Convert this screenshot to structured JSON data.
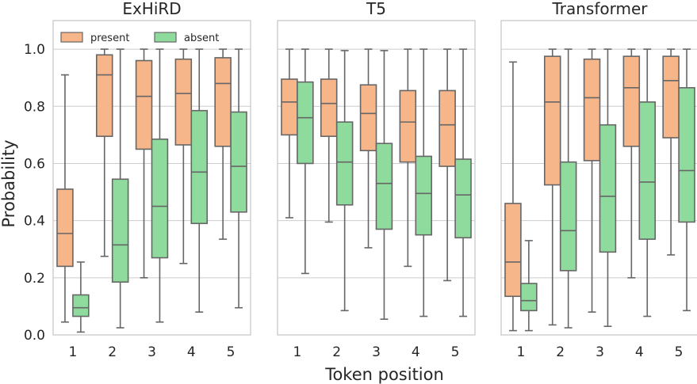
{
  "figure": {
    "xlabel": "Token position",
    "ylabel": "Probability",
    "colors": {
      "present": "#f7b58a",
      "absent": "#8fdb9e",
      "line": "#666666",
      "grid": "#cccccc",
      "frame": "#cccccc"
    }
  },
  "chart_data": [
    {
      "type": "box",
      "title": "ExHiRD",
      "categories": [
        "1",
        "2",
        "3",
        "4",
        "5"
      ],
      "ylim": [
        0,
        1.1
      ],
      "yticks": [
        "0.0",
        "0.2",
        "0.4",
        "0.6",
        "0.8",
        "1.0"
      ],
      "legend": {
        "position": "top-left",
        "entries": [
          "present",
          "absent"
        ]
      },
      "series": [
        {
          "name": "present",
          "boxes": [
            {
              "min": 0.045,
              "q1": 0.24,
              "median": 0.355,
              "q3": 0.51,
              "max": 0.91
            },
            {
              "min": 0.275,
              "q1": 0.695,
              "median": 0.91,
              "q3": 0.98,
              "max": 1.0
            },
            {
              "min": 0.2,
              "q1": 0.65,
              "median": 0.835,
              "q3": 0.96,
              "max": 1.0
            },
            {
              "min": 0.25,
              "q1": 0.665,
              "median": 0.845,
              "q3": 0.965,
              "max": 1.0
            },
            {
              "min": 0.335,
              "q1": 0.66,
              "median": 0.88,
              "q3": 0.97,
              "max": 1.0
            }
          ]
        },
        {
          "name": "absent",
          "boxes": [
            {
              "min": 0.01,
              "q1": 0.065,
              "median": 0.095,
              "q3": 0.14,
              "max": 0.255
            },
            {
              "min": 0.025,
              "q1": 0.185,
              "median": 0.315,
              "q3": 0.545,
              "max": 1.0
            },
            {
              "min": 0.045,
              "q1": 0.27,
              "median": 0.45,
              "q3": 0.685,
              "max": 1.0
            },
            {
              "min": 0.08,
              "q1": 0.39,
              "median": 0.57,
              "q3": 0.785,
              "max": 1.0
            },
            {
              "min": 0.095,
              "q1": 0.43,
              "median": 0.59,
              "q3": 0.78,
              "max": 1.0
            }
          ]
        }
      ]
    },
    {
      "type": "box",
      "title": "T5",
      "categories": [
        "1",
        "2",
        "3",
        "4",
        "5"
      ],
      "ylim": [
        0,
        1.1
      ],
      "series": [
        {
          "name": "present",
          "boxes": [
            {
              "min": 0.41,
              "q1": 0.7,
              "median": 0.815,
              "q3": 0.895,
              "max": 1.0
            },
            {
              "min": 0.395,
              "q1": 0.695,
              "median": 0.81,
              "q3": 0.895,
              "max": 1.0
            },
            {
              "min": 0.305,
              "q1": 0.645,
              "median": 0.775,
              "q3": 0.875,
              "max": 1.0
            },
            {
              "min": 0.24,
              "q1": 0.605,
              "median": 0.745,
              "q3": 0.855,
              "max": 1.0
            },
            {
              "min": 0.19,
              "q1": 0.59,
              "median": 0.735,
              "q3": 0.855,
              "max": 1.0
            }
          ]
        },
        {
          "name": "absent",
          "boxes": [
            {
              "min": 0.215,
              "q1": 0.6,
              "median": 0.76,
              "q3": 0.885,
              "max": 1.0
            },
            {
              "min": 0.085,
              "q1": 0.455,
              "median": 0.605,
              "q3": 0.745,
              "max": 0.995
            },
            {
              "min": 0.055,
              "q1": 0.37,
              "median": 0.53,
              "q3": 0.67,
              "max": 0.995
            },
            {
              "min": 0.065,
              "q1": 0.35,
              "median": 0.495,
              "q3": 0.625,
              "max": 1.0
            },
            {
              "min": 0.065,
              "q1": 0.34,
              "median": 0.49,
              "q3": 0.615,
              "max": 1.0
            }
          ]
        }
      ]
    },
    {
      "type": "box",
      "title": "Transformer",
      "categories": [
        "1",
        "2",
        "3",
        "4",
        "5"
      ],
      "ylim": [
        0,
        1.1
      ],
      "series": [
        {
          "name": "present",
          "boxes": [
            {
              "min": 0.015,
              "q1": 0.135,
              "median": 0.255,
              "q3": 0.46,
              "max": 0.955
            },
            {
              "min": 0.035,
              "q1": 0.525,
              "median": 0.815,
              "q3": 0.975,
              "max": 1.0
            },
            {
              "min": 0.08,
              "q1": 0.61,
              "median": 0.83,
              "q3": 0.965,
              "max": 1.0
            },
            {
              "min": 0.2,
              "q1": 0.66,
              "median": 0.865,
              "q3": 0.975,
              "max": 1.0
            },
            {
              "min": 0.28,
              "q1": 0.69,
              "median": 0.89,
              "q3": 0.975,
              "max": 1.0
            }
          ]
        },
        {
          "name": "absent",
          "boxes": [
            {
              "min": 0.015,
              "q1": 0.085,
              "median": 0.12,
              "q3": 0.18,
              "max": 0.33
            },
            {
              "min": 0.025,
              "q1": 0.225,
              "median": 0.365,
              "q3": 0.605,
              "max": 1.0
            },
            {
              "min": 0.03,
              "q1": 0.29,
              "median": 0.485,
              "q3": 0.735,
              "max": 1.0
            },
            {
              "min": 0.065,
              "q1": 0.335,
              "median": 0.535,
              "q3": 0.815,
              "max": 1.0
            },
            {
              "min": 0.085,
              "q1": 0.395,
              "median": 0.575,
              "q3": 0.865,
              "max": 1.0
            }
          ]
        }
      ]
    }
  ]
}
